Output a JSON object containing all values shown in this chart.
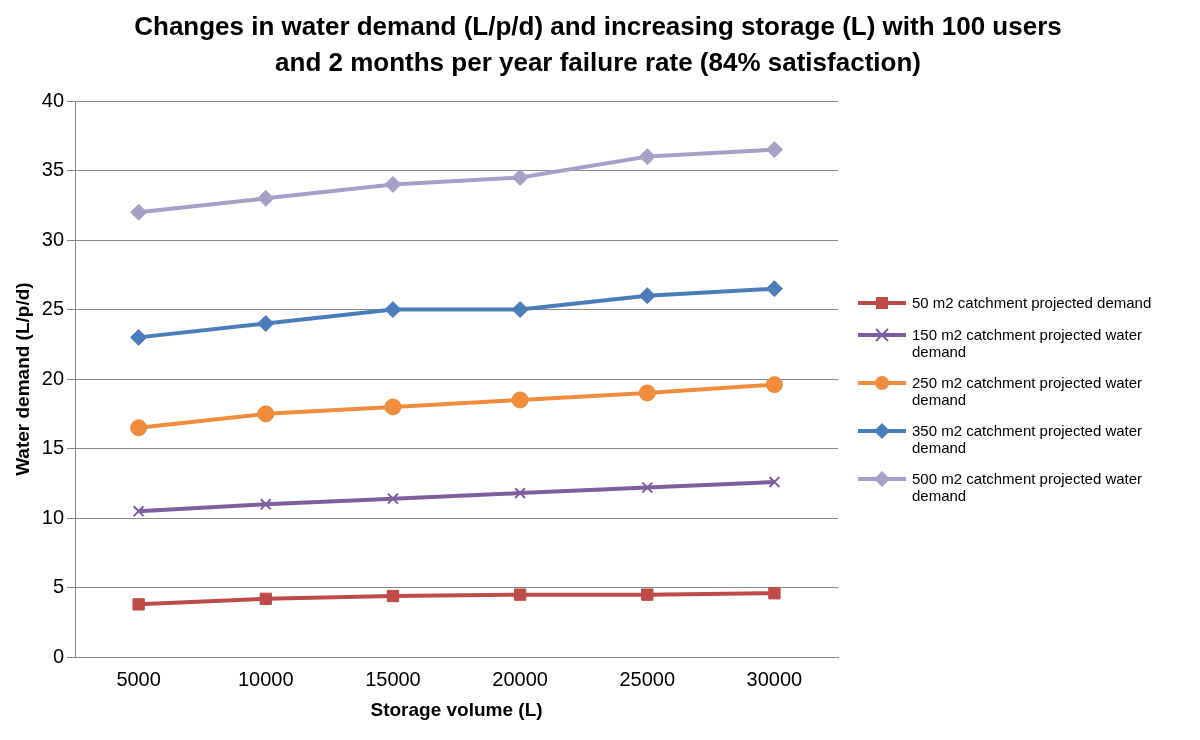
{
  "chart_data": {
    "type": "line",
    "title": "Changes in water demand (L/p/d) and increasing storage (L) with 100 users and 2 months per year failure rate (84% satisfaction)",
    "xlabel": "Storage volume (L)",
    "ylabel": "Water demand (L/p/d)",
    "categories": [
      "5000",
      "10000",
      "15000",
      "20000",
      "25000",
      "30000"
    ],
    "ylim": [
      0,
      40
    ],
    "yticks": [
      0,
      5,
      10,
      15,
      20,
      25,
      30,
      35,
      40
    ],
    "grid": "y",
    "legend": "right",
    "line_style": "solid",
    "series": [
      {
        "name": "50 m2 catchment projected demand",
        "color": "#be4b48",
        "marker": "square",
        "values": [
          3.8,
          4.2,
          4.4,
          4.5,
          4.5,
          4.6
        ]
      },
      {
        "name": "150 m2 catchment projected water demand",
        "color": "#7d5fa0",
        "marker": "cross",
        "values": [
          10.5,
          11.0,
          11.4,
          11.8,
          12.2,
          12.6
        ]
      },
      {
        "name": "250 m2 catchment projected water demand",
        "color": "#f08c3c",
        "marker": "circle",
        "values": [
          16.5,
          17.5,
          18.0,
          18.5,
          19.0,
          19.6
        ]
      },
      {
        "name": "350 m2 catchment projected water demand",
        "color": "#4a7ebb",
        "marker": "diamond",
        "values": [
          23.0,
          24.0,
          25.0,
          25.0,
          26.0,
          26.5
        ]
      },
      {
        "name": "500 m2 catchment projected water demand",
        "color": "#a5a0c8",
        "marker": "diamond",
        "values": [
          32.0,
          33.0,
          34.0,
          34.5,
          36.0,
          36.5
        ]
      }
    ]
  }
}
